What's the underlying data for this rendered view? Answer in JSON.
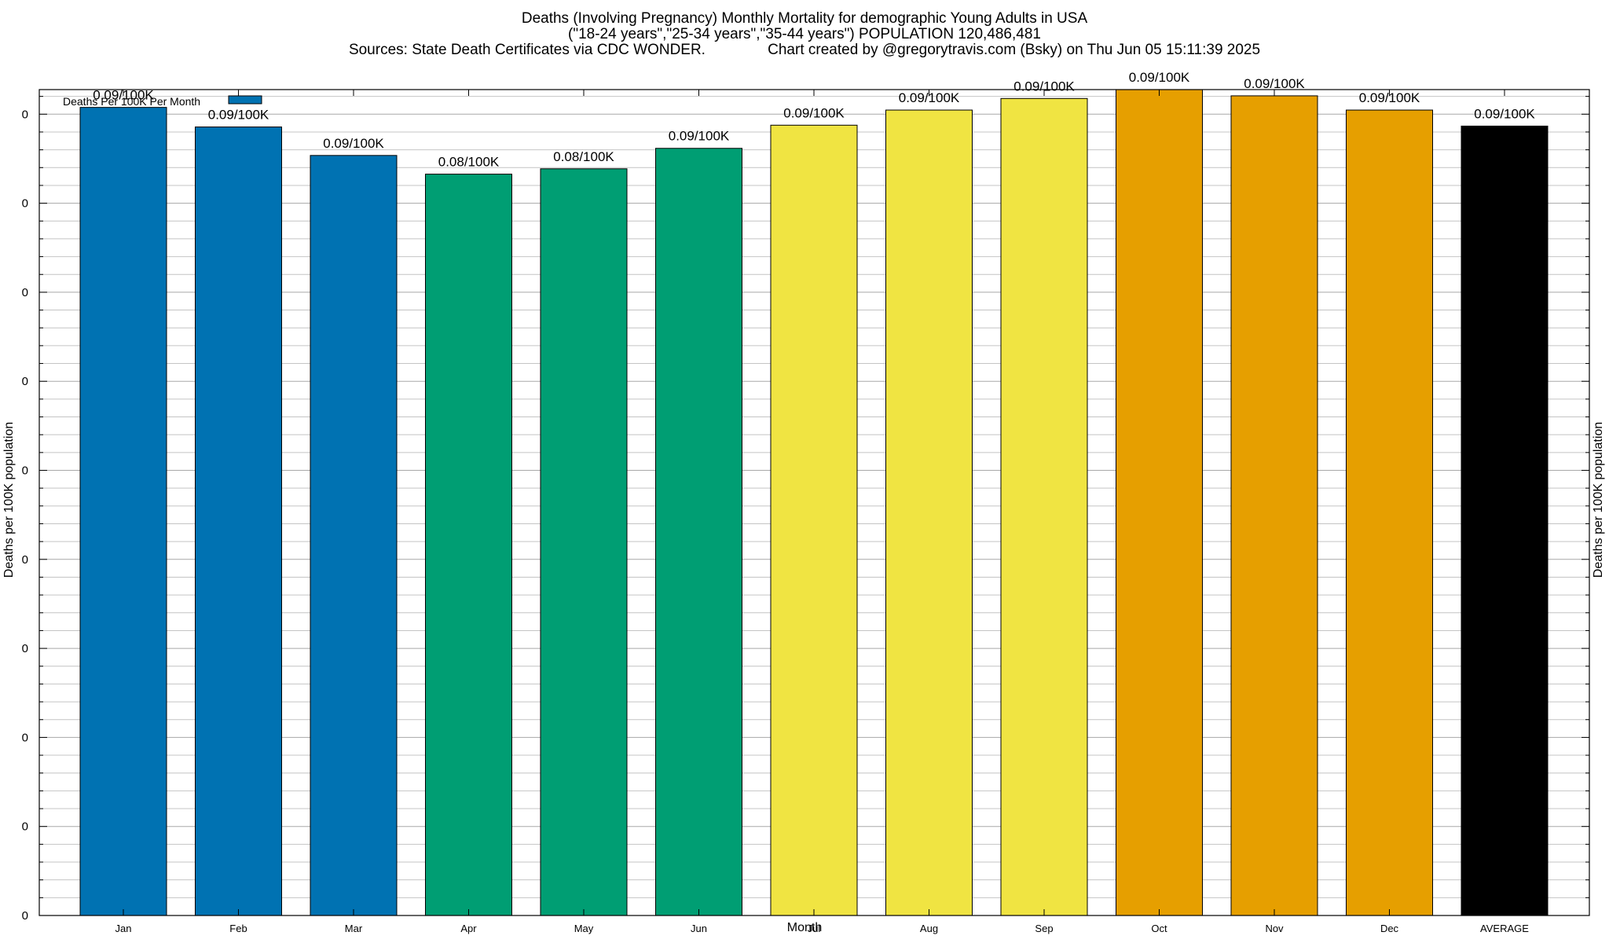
{
  "title": {
    "line1": "Deaths (Involving Pregnancy) Monthly Mortality for demographic Young Adults in USA",
    "line2": "(\"18-24 years\",\"25-34 years\",\"35-44 years\") POPULATION 120,486,481",
    "line3": "Sources: State Death Certificates via CDC WONDER.               Chart created by @gregorytravis.com (Bsky) on Thu Jun 05 15:11:39 2025"
  },
  "legend": {
    "label": "Deaths Per 100K Per Month",
    "color": "#0072b2"
  },
  "chart_data": {
    "type": "bar",
    "title": "Deaths (Involving Pregnancy) Monthly Mortality for demographic Young Adults in USA",
    "xlabel": "Month",
    "ylabel": "Deaths per 100K population",
    "ylabel_right": "Deaths per 100K population",
    "categories": [
      "Jan",
      "Feb",
      "Mar",
      "Apr",
      "May",
      "Jun",
      "Jul",
      "Aug",
      "Sep",
      "Oct",
      "Nov",
      "Dec",
      "AVERAGE"
    ],
    "values": [
      0.0908,
      0.0886,
      0.0854,
      0.0833,
      0.0839,
      0.0862,
      0.0888,
      0.0905,
      0.0918,
      0.0928,
      0.0921,
      0.0905,
      0.0887
    ],
    "data_labels": [
      "0.09/100K",
      "0.09/100K",
      "0.09/100K",
      "0.08/100K",
      "0.08/100K",
      "0.09/100K",
      "0.09/100K",
      "0.09/100K",
      "0.09/100K",
      "0.09/100K",
      "0.09/100K",
      "0.09/100K",
      "0.09/100K"
    ],
    "colors": [
      "#0072b2",
      "#0072b2",
      "#0072b2",
      "#009e73",
      "#009e73",
      "#009e73",
      "#f0e442",
      "#f0e442",
      "#f0e442",
      "#e69f00",
      "#e69f00",
      "#e69f00",
      "#000000"
    ],
    "y_tick_labels": [
      "0",
      "0",
      "0",
      "0",
      "0",
      "0",
      "0",
      "0",
      "0",
      "0"
    ],
    "ylim": [
      0,
      0.0928
    ],
    "grid": true,
    "legend_position": "top-left"
  }
}
